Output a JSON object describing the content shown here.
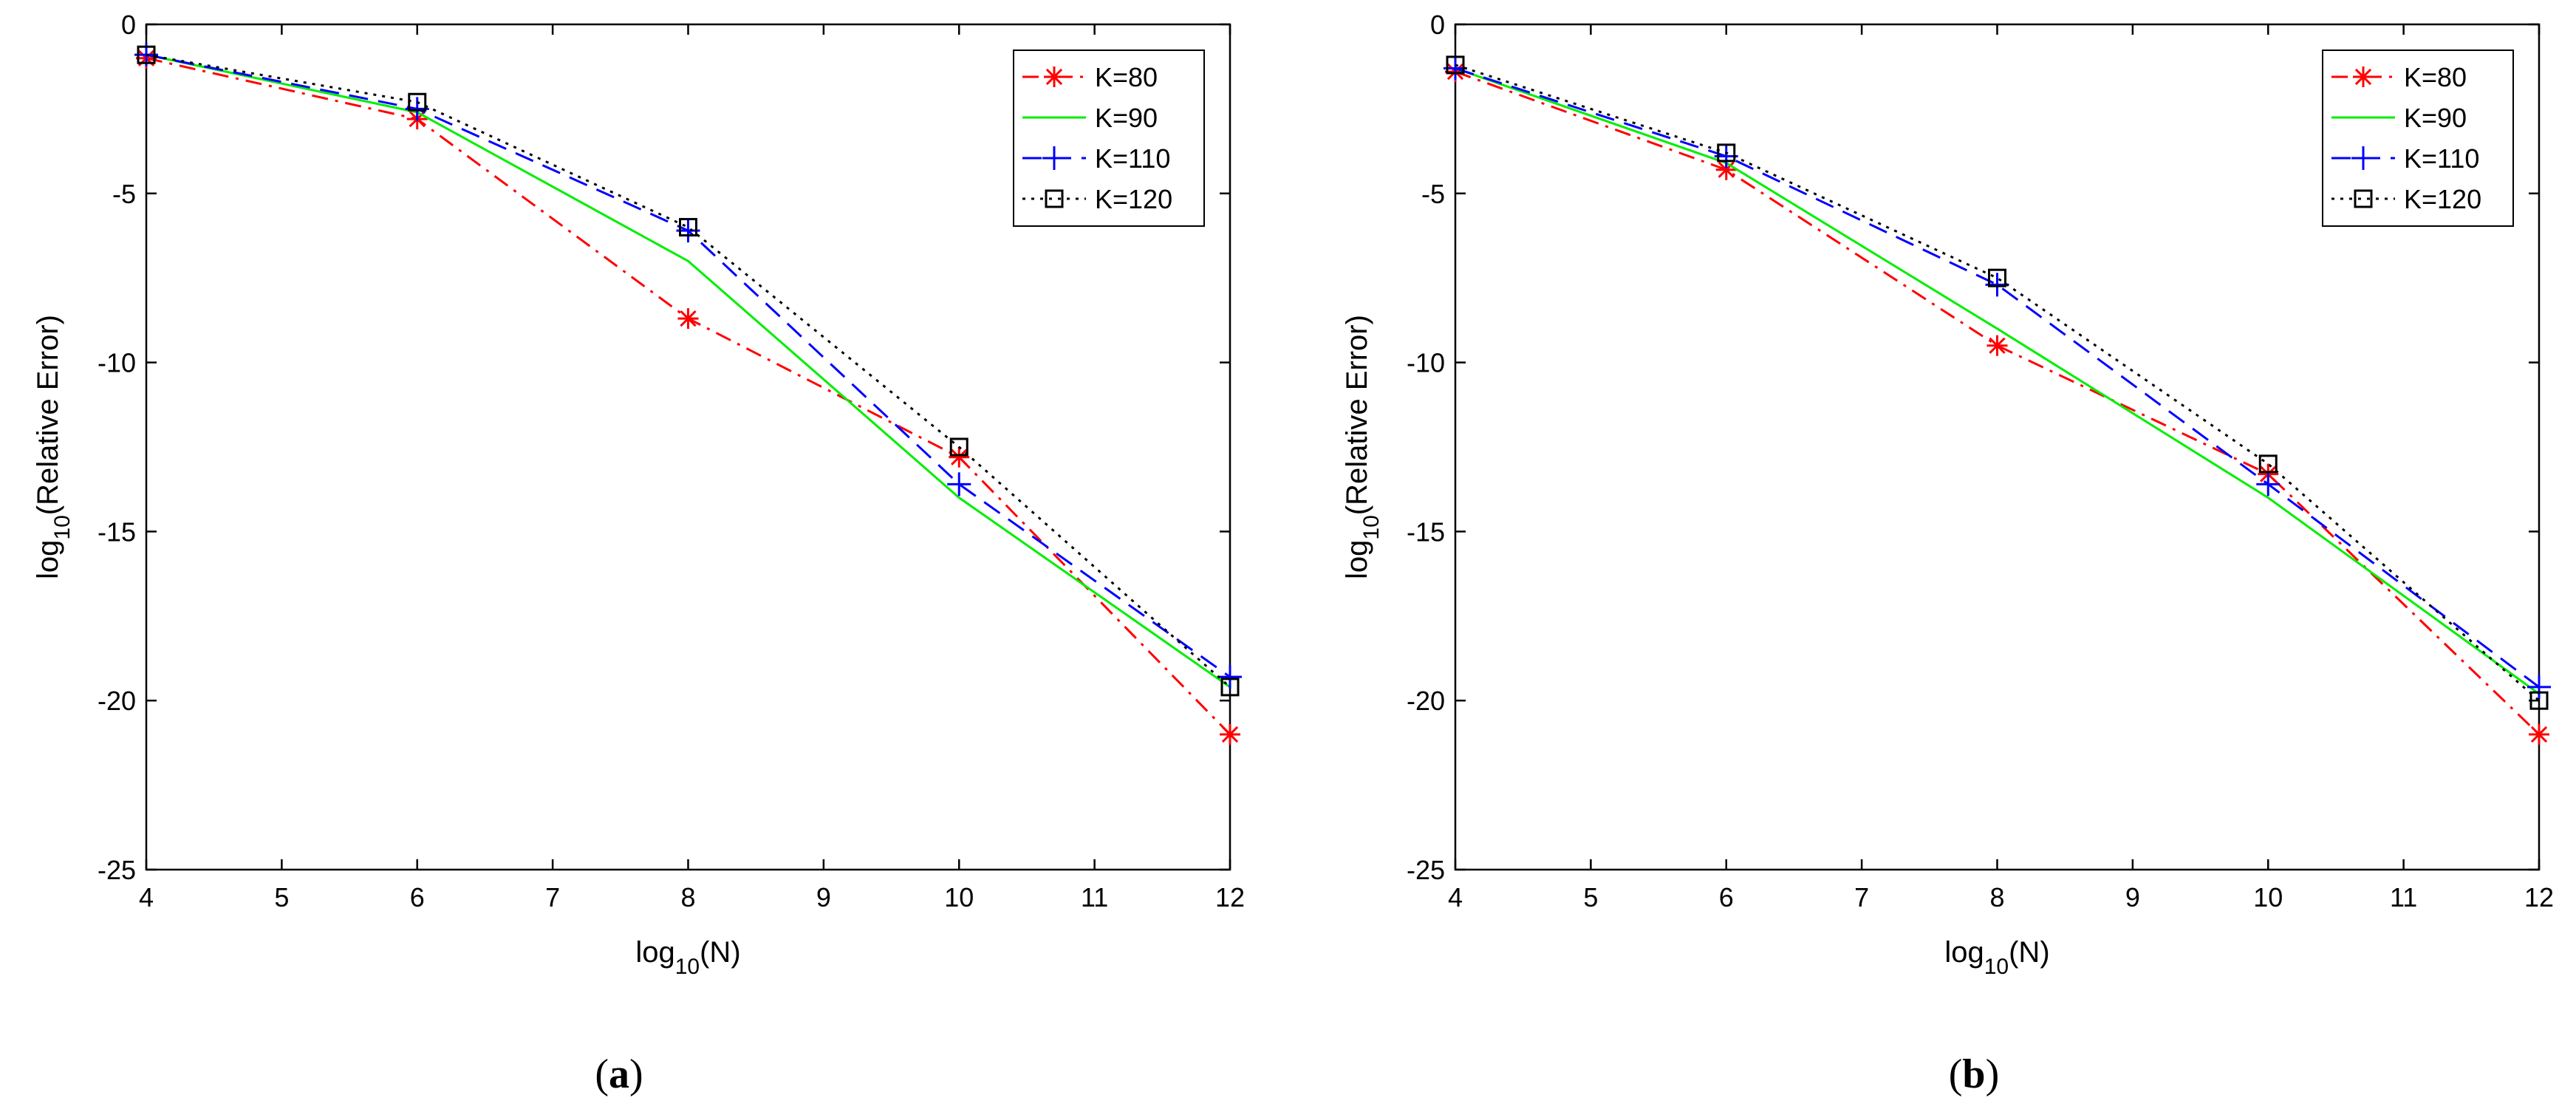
{
  "chart_data": [
    {
      "type": "line",
      "panel_label": "a",
      "xlabel_base": "log",
      "xlabel_sub": "10",
      "xlabel_tail": "(N)",
      "ylabel_base": "log",
      "ylabel_sub": "10",
      "ylabel_tail": "(Relative Error)",
      "xlim": [
        4,
        12
      ],
      "ylim": [
        -25,
        0
      ],
      "xticks": [
        4,
        5,
        6,
        7,
        8,
        9,
        10,
        11,
        12
      ],
      "yticks": [
        0,
        -5,
        -10,
        -15,
        -20,
        -25
      ],
      "x": [
        4,
        6,
        8,
        10,
        12
      ],
      "legend_position": "top-right",
      "series": [
        {
          "name": "K=80",
          "color": "#ff0000",
          "style": "dashdot",
          "marker": "asterisk",
          "values": [
            -1.0,
            -2.8,
            -8.7,
            -12.8,
            -21.0
          ]
        },
        {
          "name": "K=90",
          "color": "#00ee00",
          "style": "solid",
          "marker": "none",
          "values": [
            -0.9,
            -2.6,
            -7.0,
            -14.0,
            -19.6
          ]
        },
        {
          "name": "K=110",
          "color": "#0000ff",
          "style": "dashed",
          "marker": "plus",
          "values": [
            -0.9,
            -2.5,
            -6.1,
            -13.6,
            -19.3
          ]
        },
        {
          "name": "K=120",
          "color": "#000000",
          "style": "dotted",
          "marker": "square",
          "values": [
            -0.9,
            -2.3,
            -6.0,
            -12.5,
            -19.6
          ]
        }
      ]
    },
    {
      "type": "line",
      "panel_label": "b",
      "xlabel_base": "log",
      "xlabel_sub": "10",
      "xlabel_tail": "(N)",
      "ylabel_base": "log",
      "ylabel_sub": "10",
      "ylabel_tail": "(Relative Error)",
      "xlim": [
        4,
        12
      ],
      "ylim": [
        -25,
        0
      ],
      "xticks": [
        4,
        5,
        6,
        7,
        8,
        9,
        10,
        11,
        12
      ],
      "yticks": [
        0,
        -5,
        -10,
        -15,
        -20,
        -25
      ],
      "x": [
        4,
        6,
        8,
        10,
        12
      ],
      "legend_position": "top-right",
      "series": [
        {
          "name": "K=80",
          "color": "#ff0000",
          "style": "dashdot",
          "marker": "asterisk",
          "values": [
            -1.4,
            -4.3,
            -9.5,
            -13.3,
            -21.0
          ]
        },
        {
          "name": "K=90",
          "color": "#00ee00",
          "style": "solid",
          "marker": "none",
          "values": [
            -1.3,
            -4.1,
            -9.0,
            -14.0,
            -19.8
          ]
        },
        {
          "name": "K=110",
          "color": "#0000ff",
          "style": "dashed",
          "marker": "plus",
          "values": [
            -1.3,
            -3.9,
            -7.7,
            -13.6,
            -19.6
          ]
        },
        {
          "name": "K=120",
          "color": "#000000",
          "style": "dotted",
          "marker": "square",
          "values": [
            -1.2,
            -3.8,
            -7.5,
            -13.0,
            -20.0
          ]
        }
      ]
    }
  ]
}
